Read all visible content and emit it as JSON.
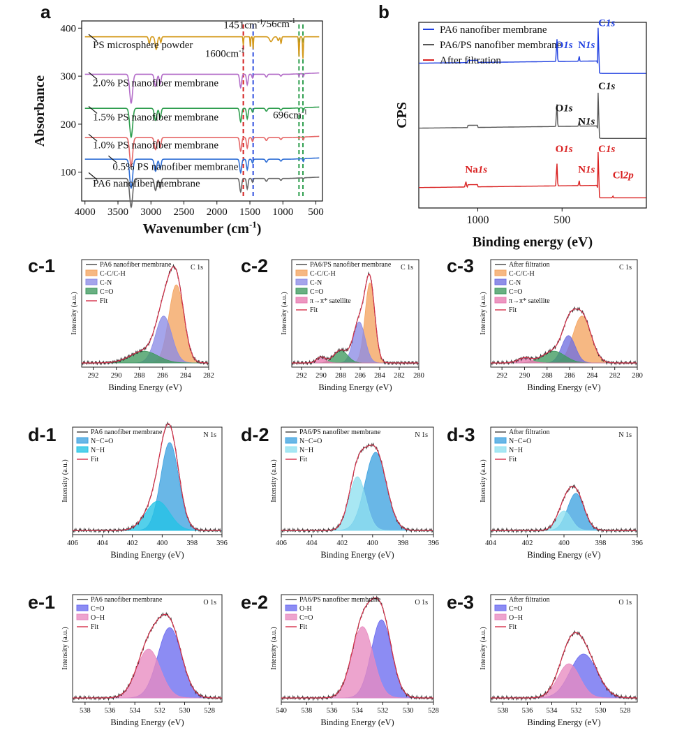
{
  "chart_data": [
    {
      "id": "a",
      "type": "line",
      "panel_label": "a",
      "xlabel": "Wavenumber (cm",
      "xlabel_sup": "-1",
      "xlabel_close": ")",
      "ylabel": "Absorbance",
      "xlim": [
        4050,
        400
      ],
      "ylim": [
        40,
        415
      ],
      "xticks": [
        "4000",
        "3500",
        "3000",
        "2500",
        "2000",
        "1500",
        "1000",
        "500"
      ],
      "yticks": [
        "100",
        "200",
        "300",
        "400"
      ],
      "series": [
        {
          "name": "PS microsphere powder",
          "color": "#d49a1c",
          "base": 382,
          "label_x": 3880,
          "label_y": 358
        },
        {
          "name": "2.0% PS nanofiber membrane",
          "color": "#b36cc8",
          "base": 304,
          "label_x": 3880,
          "label_y": 279
        },
        {
          "name": "1.5% PS nanofiber membrane",
          "color": "#2e9e4e",
          "base": 233,
          "label_x": 3880,
          "label_y": 208
        },
        {
          "name": "1.0% PS nanofiber membrane",
          "color": "#e56666",
          "base": 172,
          "label_x": 3880,
          "label_y": 150
        },
        {
          "name": "0.5% PS nanofiber membrane",
          "color": "#2f6fd6",
          "base": 127,
          "label_x": 3580,
          "label_y": 105
        },
        {
          "name": "PA6 nanofiber membrane",
          "color": "#666666",
          "base": 87,
          "label_x": 3880,
          "label_y": 70
        }
      ],
      "annotations": [
        {
          "text": "1451cm",
          "sup": "-1",
          "x": 1900,
          "y": 400
        },
        {
          "text": "756cm",
          "sup": "-1",
          "x": 1330,
          "y": 402
        },
        {
          "text": "1600cm",
          "sup": "-1",
          "x": 2180,
          "y": 340
        },
        {
          "text": "696cm",
          "sup": "-1",
          "x": 1150,
          "y": 212
        }
      ],
      "marker_lines": [
        {
          "x": 1600,
          "color": "#d32020"
        },
        {
          "x": 1451,
          "color": "#2f4fe0"
        },
        {
          "x": 756,
          "color": "#2e9e4e"
        },
        {
          "x": 696,
          "color": "#2e9e4e"
        }
      ]
    },
    {
      "id": "b",
      "type": "line",
      "panel_label": "b",
      "xlabel": "Binding energy (eV)",
      "ylabel": "CPS",
      "xlim": [
        1350,
        0
      ],
      "ylim": [
        0,
        100
      ],
      "xticks": [
        "1000",
        "500"
      ],
      "series": [
        {
          "name": "PA6 nanofiber membrane",
          "color": "#1f3fe0",
          "base": 75
        },
        {
          "name": "PA6/PS nanofiber membrane",
          "color": "#555555",
          "base": 40
        },
        {
          "name": "After filtration",
          "color": "#d92020",
          "base": 8
        }
      ],
      "peak_labels": [
        {
          "text": "O",
          "ital": "1s",
          "color": "#1f3fe0",
          "x": 540,
          "y": 86
        },
        {
          "text": "N",
          "ital": "1s",
          "color": "#1f3fe0",
          "x": 405,
          "y": 86
        },
        {
          "text": "C",
          "ital": "1s",
          "color": "#1f3fe0",
          "x": 285,
          "y": 98
        },
        {
          "text": "O",
          "ital": "1s",
          "color": "#111111",
          "x": 540,
          "y": 52
        },
        {
          "text": "N",
          "ital": "1s",
          "color": "#111111",
          "x": 405,
          "y": 45
        },
        {
          "text": "C",
          "ital": "1s",
          "color": "#111111",
          "x": 285,
          "y": 64
        },
        {
          "text": "Na",
          "ital": "1s",
          "color": "#d92020",
          "x": 1075,
          "y": 19
        },
        {
          "text": "O",
          "ital": "1s",
          "color": "#d92020",
          "x": 540,
          "y": 30
        },
        {
          "text": "N",
          "ital": "1s",
          "color": "#d92020",
          "x": 405,
          "y": 19
        },
        {
          "text": "C",
          "ital": "1s",
          "color": "#d92020",
          "x": 285,
          "y": 30
        },
        {
          "text": "Cl",
          "ital": "2p",
          "color": "#d92020",
          "x": 200,
          "y": 16
        }
      ]
    },
    {
      "id": "c-1",
      "type": "area",
      "panel_label": "c-1",
      "element": "C 1s",
      "xlabel": "Binding Energy (eV)",
      "ylabel": "Intensity (a.u.)",
      "xlim": [
        293,
        282
      ],
      "xticks": [
        "292",
        "290",
        "288",
        "286",
        "284",
        "282"
      ],
      "legend": [
        "PA6 nanofiber membrane",
        "C-C/C-H",
        "C-N",
        "C=O",
        "Fit"
      ],
      "components": [
        {
          "name": "C-C/C-H",
          "center": 284.8,
          "height": 0.8,
          "width": 0.65,
          "color": "#f4a460"
        },
        {
          "name": "C-N",
          "center": 285.9,
          "height": 0.48,
          "width": 0.7,
          "color": "#8c8ce6"
        },
        {
          "name": "C=O",
          "center": 287.6,
          "height": 0.12,
          "width": 1.2,
          "color": "#3f9a5f"
        }
      ]
    },
    {
      "id": "c-2",
      "type": "area",
      "panel_label": "c-2",
      "element": "C 1s",
      "xlabel": "Binding Energy (eV)",
      "ylabel": "Intensity (a.u.)",
      "xlim": [
        293,
        280
      ],
      "xticks": [
        "292",
        "290",
        "288",
        "286",
        "284",
        "282",
        "280"
      ],
      "legend": [
        "PA6/PS nanofiber membrane",
        "C-C/C-H",
        "C-N",
        "C=O",
        "π→π* satellite",
        "Fit"
      ],
      "components": [
        {
          "name": "C-C/C-H",
          "center": 285.0,
          "height": 0.82,
          "width": 0.5,
          "color": "#f4a460"
        },
        {
          "name": "C-N",
          "center": 286.1,
          "height": 0.42,
          "width": 0.6,
          "color": "#8c8ce6"
        },
        {
          "name": "C=O",
          "center": 288.0,
          "height": 0.13,
          "width": 0.7,
          "color": "#3f9a5f"
        },
        {
          "name": "π→π* satellite",
          "center": 290.0,
          "height": 0.06,
          "width": 0.45,
          "color": "#e87ab0"
        }
      ]
    },
    {
      "id": "c-3",
      "type": "area",
      "panel_label": "c-3",
      "element": "C 1s",
      "xlabel": "Binding Energy (eV)",
      "ylabel": "Intensity (a.u.)",
      "xlim": [
        293,
        280
      ],
      "xticks": [
        "292",
        "290",
        "288",
        "286",
        "284",
        "282",
        "280"
      ],
      "legend": [
        "After filtration",
        "C-C/C-H",
        "C-N",
        "C=O",
        "π→π* satellite",
        "Fit"
      ],
      "components": [
        {
          "name": "C-C/C-H",
          "center": 284.9,
          "height": 0.48,
          "width": 0.8,
          "color": "#f4a460"
        },
        {
          "name": "C-N",
          "center": 286.1,
          "height": 0.28,
          "width": 0.6,
          "color": "#6f6fe0"
        },
        {
          "name": "C=O",
          "center": 287.4,
          "height": 0.12,
          "width": 1.0,
          "color": "#3f9a5f"
        },
        {
          "name": "π→π* satellite",
          "center": 290.0,
          "height": 0.05,
          "width": 0.6,
          "color": "#e87ab0"
        }
      ]
    },
    {
      "id": "d-1",
      "type": "area",
      "panel_label": "d-1",
      "element": "N 1s",
      "xlabel": "Binding Energy (eV)",
      "ylabel": "Intensity (a.u.)",
      "xlim": [
        406,
        396
      ],
      "xticks": [
        "406",
        "404",
        "402",
        "400",
        "398",
        "396"
      ],
      "legend": [
        "PA6 nanofiber membrane",
        "N−C=O",
        "N−H",
        "Fit"
      ],
      "components": [
        {
          "name": "N−C=O",
          "center": 399.5,
          "height": 0.9,
          "width": 0.6,
          "color": "#3fa3e0"
        },
        {
          "name": "N−H",
          "center": 400.3,
          "height": 0.3,
          "width": 0.8,
          "color": "#23c3e6"
        }
      ]
    },
    {
      "id": "d-2",
      "type": "area",
      "panel_label": "d-2",
      "element": "N 1s",
      "xlabel": "Binding Energy (eV)",
      "ylabel": "Intensity (a.u.)",
      "xlim": [
        406,
        396
      ],
      "xticks": [
        "406",
        "404",
        "402",
        "400",
        "398",
        "396"
      ],
      "legend": [
        "PA6/PS nanofiber membrane",
        "N−C=O",
        "N−H",
        "Fit"
      ],
      "components": [
        {
          "name": "N−C=O",
          "center": 399.8,
          "height": 0.8,
          "width": 0.7,
          "color": "#3fa3e0"
        },
        {
          "name": "N−H",
          "center": 401.0,
          "height": 0.55,
          "width": 0.55,
          "color": "#8fe0f0"
        }
      ]
    },
    {
      "id": "d-3",
      "type": "area",
      "panel_label": "d-3",
      "element": "N 1s",
      "xlabel": "Binding Energy (eV)",
      "ylabel": "Intensity (a.u.)",
      "xlim": [
        404,
        396
      ],
      "xticks": [
        "404",
        "402",
        "400",
        "398",
        "396"
      ],
      "legend": [
        "After filtration",
        "N−C=O",
        "N−H",
        "Fit"
      ],
      "components": [
        {
          "name": "N−C=O",
          "center": 399.35,
          "height": 0.38,
          "width": 0.45,
          "color": "#3fa3e0"
        },
        {
          "name": "N−H",
          "center": 400.0,
          "height": 0.2,
          "width": 0.4,
          "color": "#8fe0f0"
        }
      ]
    },
    {
      "id": "e-1",
      "type": "area",
      "panel_label": "e-1",
      "element": "O 1s",
      "xlabel": "Binding Energy (eV)",
      "ylabel": "Intensity (a.u.)",
      "xlim": [
        539,
        527
      ],
      "xticks": [
        "538",
        "536",
        "534",
        "532",
        "530",
        "528"
      ],
      "legend": [
        "PA6 nanofiber membrane",
        "C=O",
        "O−H",
        "Fit"
      ],
      "components": [
        {
          "name": "C=O",
          "center": 531.2,
          "height": 0.72,
          "width": 0.95,
          "color": "#6c6cf0"
        },
        {
          "name": "O−H",
          "center": 532.9,
          "height": 0.5,
          "width": 0.95,
          "color": "#e88ac0"
        }
      ]
    },
    {
      "id": "e-2",
      "type": "area",
      "panel_label": "e-2",
      "element": "O 1s",
      "xlabel": "Binding Energy (eV)",
      "ylabel": "Intensity (a.u.)",
      "xlim": [
        540,
        528
      ],
      "xticks": [
        "540",
        "538",
        "536",
        "534",
        "532",
        "530",
        "528"
      ],
      "legend": [
        "PA6/PS nanofiber membrane",
        "O-H",
        "C=O",
        "Fit"
      ],
      "components": [
        {
          "name": "O-H",
          "center": 532.1,
          "height": 0.8,
          "width": 0.8,
          "color": "#6c6cf0"
        },
        {
          "name": "C=O",
          "center": 533.6,
          "height": 0.73,
          "width": 0.85,
          "color": "#e88ac0"
        }
      ]
    },
    {
      "id": "e-3",
      "type": "area",
      "panel_label": "e-3",
      "element": "O 1s",
      "xlabel": "Binding Energy (eV)",
      "ylabel": "Intensity (a.u.)",
      "xlim": [
        539,
        527
      ],
      "xticks": [
        "538",
        "536",
        "534",
        "532",
        "530",
        "528"
      ],
      "legend": [
        "After filtration",
        "C=O",
        "O−H",
        "Fit"
      ],
      "components": [
        {
          "name": "C=O",
          "center": 531.4,
          "height": 0.45,
          "width": 1.1,
          "color": "#6c6cf0"
        },
        {
          "name": "O−H",
          "center": 532.6,
          "height": 0.35,
          "width": 0.9,
          "color": "#e88ac0"
        }
      ]
    }
  ]
}
